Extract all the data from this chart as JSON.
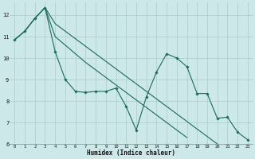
{
  "xlabel": "Humidex (Indice chaleur)",
  "ylabel": "",
  "bg_color": "#cce8e8",
  "grid_color": "#aacccc",
  "line_color": "#1a6b5a",
  "xlim": [
    -0.5,
    23.5
  ],
  "ylim": [
    6.0,
    12.6
  ],
  "xticks": [
    0,
    1,
    2,
    3,
    4,
    5,
    6,
    7,
    8,
    9,
    10,
    11,
    12,
    13,
    14,
    15,
    16,
    17,
    18,
    19,
    20,
    21,
    22,
    23
  ],
  "yticks": [
    6,
    7,
    8,
    9,
    10,
    11,
    12
  ],
  "line1_x": [
    0,
    1,
    2,
    3,
    4,
    5,
    6,
    7,
    8,
    9,
    10,
    11,
    12,
    13,
    14,
    15,
    16,
    17,
    18,
    19,
    20,
    21,
    22,
    23
  ],
  "line1_y": [
    10.85,
    11.25,
    11.85,
    12.35,
    10.3,
    9.0,
    8.45,
    8.4,
    8.45,
    8.45,
    8.6,
    7.75,
    6.65,
    8.2,
    9.35,
    10.2,
    10.0,
    9.6,
    8.35,
    8.35,
    7.2,
    7.25,
    6.55,
    6.2
  ],
  "line2_x": [
    0,
    1,
    2,
    3,
    4,
    5,
    6,
    7,
    8,
    9,
    10,
    11,
    12,
    13,
    14,
    15,
    16,
    17,
    18,
    19,
    20,
    21,
    22,
    23
  ],
  "line2_y": [
    10.85,
    11.25,
    11.85,
    12.35,
    11.0,
    10.6,
    10.2,
    9.8,
    9.45,
    9.1,
    8.75,
    8.4,
    8.05,
    7.7,
    7.35,
    7.0,
    6.65,
    6.3,
    null,
    null,
    null,
    null,
    null,
    null
  ],
  "line3_x": [
    0,
    1,
    2,
    3,
    4,
    5,
    6,
    7,
    8,
    9,
    10,
    11,
    12,
    13,
    14,
    15,
    16,
    17,
    18,
    19,
    20,
    21,
    22,
    23
  ],
  "line3_y": [
    10.85,
    11.25,
    11.85,
    12.35,
    11.6,
    11.25,
    10.9,
    10.55,
    10.2,
    9.85,
    9.5,
    9.15,
    8.8,
    8.45,
    8.1,
    7.75,
    7.4,
    7.05,
    6.7,
    6.35,
    6.0,
    null,
    null,
    null
  ]
}
